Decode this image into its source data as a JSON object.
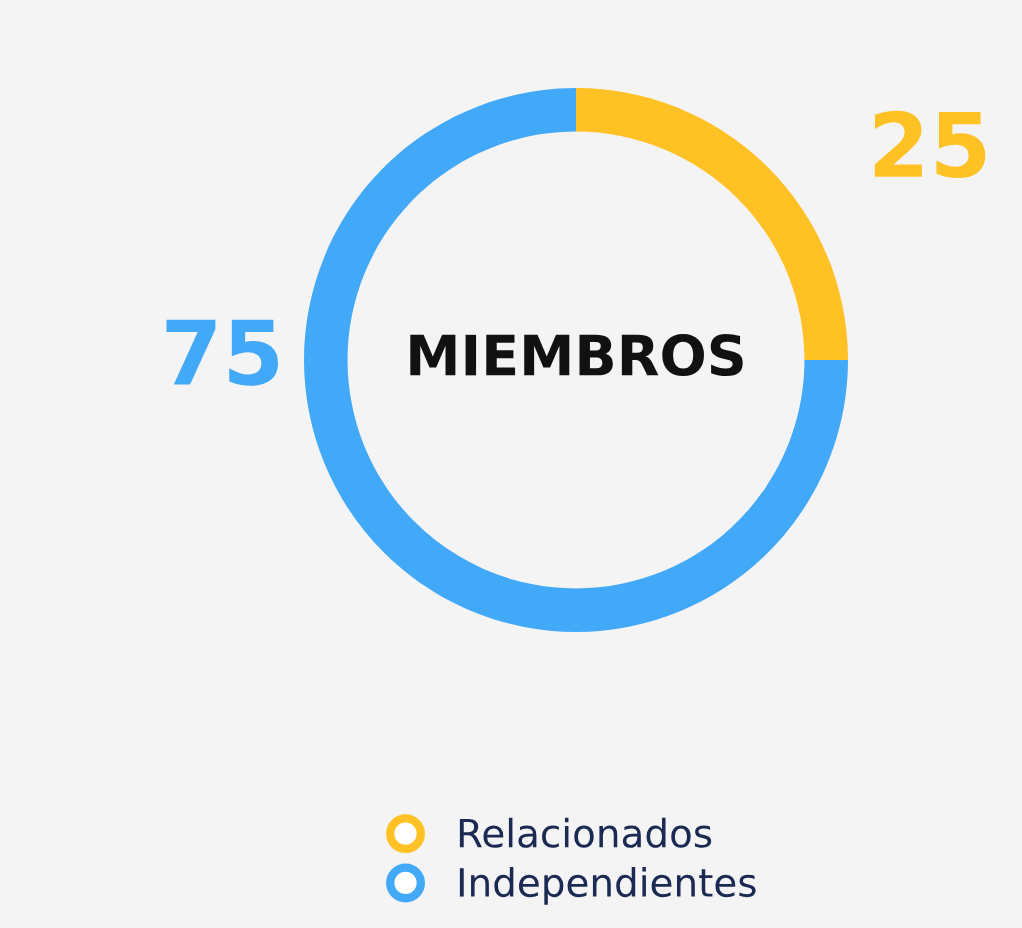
{
  "chart_data": {
    "type": "donut",
    "title": "MIEMBROS",
    "categories": [
      "Relacionados",
      "Independientes"
    ],
    "values": [
      25,
      75
    ],
    "colors": [
      "#ffc124",
      "#42a8f8"
    ],
    "data_labels": true,
    "legend": "bottom"
  }
}
